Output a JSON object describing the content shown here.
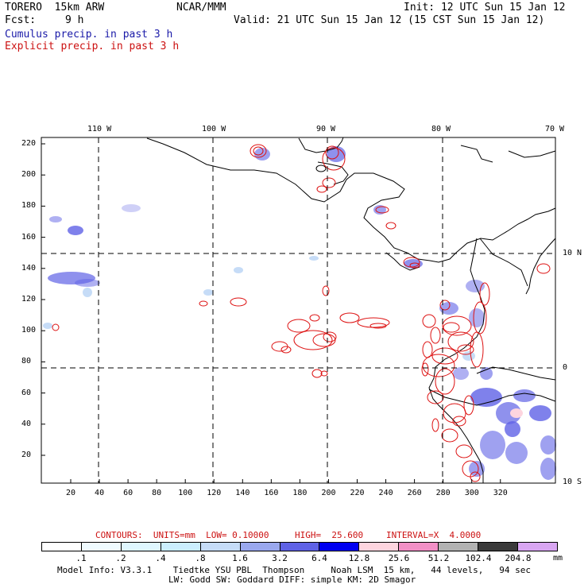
{
  "header": {
    "model": "TORERO  15km ARW",
    "center": "NCAR/MMM",
    "init": "Init: 12 UTC Sun 15 Jan 12",
    "fcst_label": "Fcst:",
    "fcst_value": "9 h",
    "valid": "Valid: 21 UTC Sun 15 Jan 12 (15 CST Sun 15 Jan 12)",
    "cumulus": "Cumulus precip. in past 3 h",
    "explicit": "Explicit precip. in past 3 h"
  },
  "map": {
    "lon_labels": [
      "110 W",
      "100 W",
      "90 W",
      "80 W",
      "70 W"
    ],
    "lat_labels": [
      "10 N",
      "0",
      "10 S"
    ],
    "y_ticks": [
      "220",
      "200",
      "180",
      "160",
      "140",
      "120",
      "100",
      "80",
      "60",
      "40",
      "20"
    ],
    "x_ticks": [
      "20",
      "40",
      "60",
      "80",
      "100",
      "120",
      "140",
      "160",
      "180",
      "200",
      "220",
      "240",
      "260",
      "280",
      "300",
      "320"
    ],
    "colors": {
      "coast": "#000000",
      "cumulus": "#3a3ad8",
      "explicit": "#dd1111"
    }
  },
  "contours": {
    "units": "CONTOURS:  UNITS=mm  LOW= 0.10000",
    "high": "HIGH=  25.600",
    "interval": "INTERVAL=X  4.0000"
  },
  "scale": {
    "labels": [
      ".1",
      ".2",
      ".4",
      ".8",
      "1.6",
      "3.2",
      "6.4",
      "12.8",
      "25.6",
      "51.2",
      "102.4",
      "204.8"
    ],
    "unit": "mm",
    "colors": [
      "#ffffff",
      "#f0fbff",
      "#dff7ff",
      "#cbeefe",
      "#c6dcf7",
      "#9aa8ee",
      "#5f62e6",
      "#0000f0",
      "#fdd5df",
      "#f290c6",
      "#b2b2b2",
      "#3a3a3a",
      "#d9a6f2"
    ]
  },
  "footer": {
    "line1": "Model Info: V3.3.1    Tiedtke YSU PBL  Thompson     Noah LSM  15 km,   44 levels,   94 sec",
    "line2": "LW: Godd SW: Goddard DIFF: simple KM: 2D Smagor"
  }
}
